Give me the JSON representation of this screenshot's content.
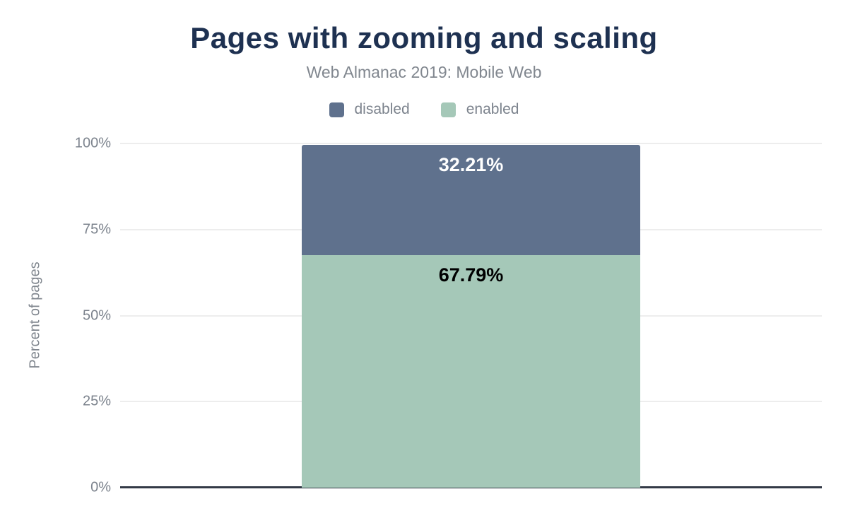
{
  "header": {
    "title": "Pages with zooming and scaling",
    "subtitle": "Web Almanac 2019: Mobile Web"
  },
  "legend": [
    {
      "label": "disabled",
      "color": "#5f718d"
    },
    {
      "label": "enabled",
      "color": "#a5c8b8"
    }
  ],
  "chart_data": {
    "type": "bar",
    "stacked": true,
    "categories": [
      ""
    ],
    "series": [
      {
        "name": "disabled",
        "values": [
          32.21
        ],
        "color": "#5f718d",
        "label": "32.21%",
        "label_color": "#ffffff"
      },
      {
        "name": "enabled",
        "values": [
          67.79
        ],
        "color": "#a5c8b8",
        "label": "67.79%",
        "label_color": "#000000"
      }
    ],
    "title": "Pages with zooming and scaling",
    "subtitle": "Web Almanac 2019: Mobile Web",
    "xlabel": "",
    "ylabel": "Percent of pages",
    "yticks": [
      "100%",
      "75%",
      "50%",
      "25%",
      "0%"
    ],
    "ylim": [
      0,
      100
    ],
    "grid": true,
    "legend_position": "top"
  },
  "colors": {
    "title_text": "#1e3151",
    "muted_text": "#7c838d",
    "gridline": "#ededed",
    "axis_line": "#333a46",
    "background": "#ffffff"
  }
}
